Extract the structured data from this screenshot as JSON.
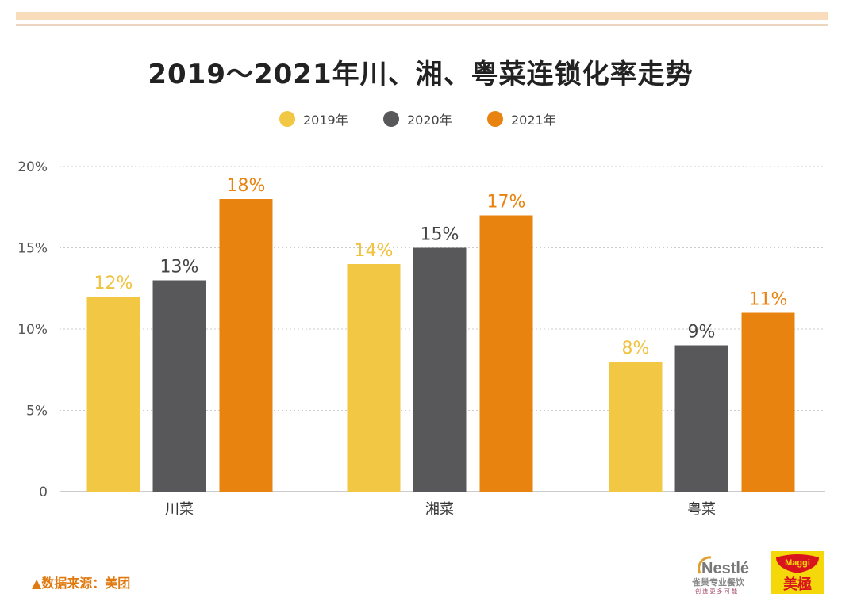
{
  "chart_data": {
    "type": "bar",
    "title": "2019～2021年川、湘、粤菜连锁化率走势",
    "categories": [
      "川菜",
      "湘菜",
      "粤菜"
    ],
    "series": [
      {
        "name": "2019年",
        "values": [
          12,
          14,
          8
        ],
        "labels": [
          "12%",
          "14%",
          "8%"
        ],
        "color": "#f2c744",
        "label_color": "#f0c23e"
      },
      {
        "name": "2020年",
        "values": [
          13,
          15,
          9
        ],
        "labels": [
          "13%",
          "15%",
          "9%"
        ],
        "color": "#58585a",
        "label_color": "#444444"
      },
      {
        "name": "2021年",
        "values": [
          18,
          17,
          11
        ],
        "labels": [
          "18%",
          "17%",
          "11%"
        ],
        "color": "#e8830f",
        "label_color": "#e8830f"
      }
    ],
    "yticks": [
      "0",
      "5%",
      "10%",
      "15%",
      "20%"
    ],
    "ytick_values": [
      0,
      5,
      10,
      15,
      20
    ],
    "ylim": [
      0,
      20
    ],
    "grid": true,
    "gridstyle": "dotted",
    "legend_position": "top-center"
  },
  "footer": {
    "source": "▲数据来源：美团",
    "logos": {
      "nestle": "Nestlé 雀巢专业餐饮 创造更多可能",
      "maggi": "Maggi 美極"
    }
  }
}
